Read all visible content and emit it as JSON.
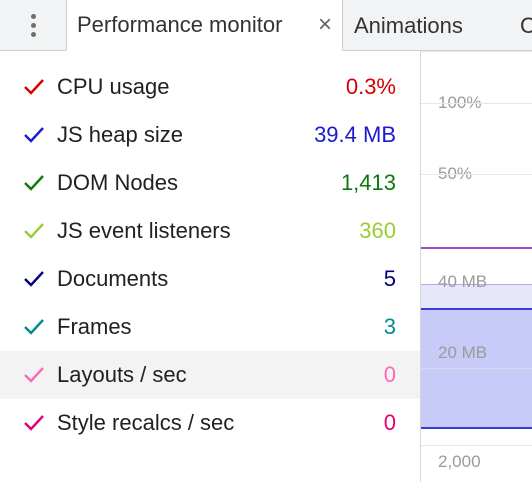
{
  "tabs": {
    "active_label": "Performance monitor",
    "second_label": "Animations",
    "third_label_partial": "C"
  },
  "metrics": [
    {
      "label": "CPU usage",
      "value": "0.3%",
      "color": "#d50000"
    },
    {
      "label": "JS heap size",
      "value": "39.4 MB",
      "color": "#1a1acf"
    },
    {
      "label": "DOM Nodes",
      "value": "1,413",
      "color": "#0b7a0b"
    },
    {
      "label": "JS event listeners",
      "value": "360",
      "color": "#9acd32"
    },
    {
      "label": "Documents",
      "value": "5",
      "color": "#00007a"
    },
    {
      "label": "Frames",
      "value": "3",
      "color": "#008b8b"
    },
    {
      "label": "Layouts / sec",
      "value": "0",
      "color": "#ff69b4"
    },
    {
      "label": "Style recalcs / sec",
      "value": "0",
      "color": "#e0007a"
    }
  ],
  "graph": {
    "labels": [
      "100%",
      "50%",
      "40 MB",
      "20 MB",
      "2,000"
    ],
    "colors": {
      "cpu_line": "#9c4fc4",
      "heap_fill": "#c8caf7",
      "heap_line": "#3b3bd6",
      "heap_band": "#e6e7fb"
    }
  }
}
